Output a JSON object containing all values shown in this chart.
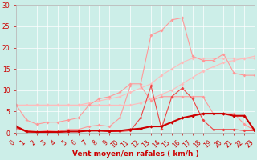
{
  "x": [
    0,
    1,
    2,
    3,
    4,
    5,
    6,
    7,
    8,
    9,
    10,
    11,
    12,
    13,
    14,
    15,
    16,
    17,
    18,
    19,
    20,
    21,
    22,
    23
  ],
  "line_dark_thick": [
    1.5,
    0.3,
    0.2,
    0.2,
    0.2,
    0.3,
    0.3,
    0.5,
    0.5,
    0.4,
    0.5,
    0.8,
    1.0,
    1.5,
    1.5,
    2.5,
    3.5,
    4.0,
    4.5,
    4.5,
    4.5,
    4.0,
    4.0,
    0.5
  ],
  "line_dark_jagged": [
    1.2,
    0.2,
    0.1,
    0.2,
    0.1,
    0.3,
    0.3,
    0.5,
    0.5,
    0.3,
    0.3,
    0.5,
    3.5,
    11.0,
    1.0,
    8.5,
    10.5,
    8.0,
    3.0,
    0.8,
    0.8,
    0.8,
    0.5,
    0.5
  ],
  "line_med_jagged": [
    1.5,
    0.5,
    0.2,
    0.5,
    0.3,
    0.8,
    0.8,
    1.5,
    1.8,
    1.5,
    3.5,
    11.0,
    11.0,
    7.5,
    8.5,
    8.5,
    8.5,
    8.5,
    8.5,
    4.5,
    4.5,
    4.5,
    2.0,
    0.5
  ],
  "line_light_peak": [
    6.5,
    3.0,
    2.0,
    2.5,
    2.5,
    3.0,
    3.5,
    6.5,
    8.0,
    8.5,
    9.5,
    11.5,
    11.5,
    23.0,
    24.0,
    26.5,
    27.0,
    18.0,
    17.0,
    17.0,
    18.5,
    14.0,
    13.5,
    13.5
  ],
  "line_diag1": [
    6.5,
    6.5,
    6.5,
    6.5,
    6.5,
    6.5,
    6.5,
    7.0,
    7.5,
    8.0,
    8.5,
    9.5,
    10.5,
    11.5,
    13.5,
    15.0,
    16.5,
    17.5,
    17.5,
    17.5,
    17.5,
    17.5,
    17.5,
    17.5
  ],
  "line_diag2": [
    6.5,
    6.5,
    6.5,
    6.5,
    6.5,
    6.5,
    6.5,
    6.5,
    6.5,
    6.5,
    6.5,
    6.5,
    7.0,
    8.0,
    9.0,
    10.0,
    11.5,
    13.0,
    14.5,
    15.5,
    16.5,
    17.0,
    17.5,
    18.0
  ],
  "color_dark": "#cc0000",
  "color_medium": "#ee4444",
  "color_light_pink": "#ff9999",
  "color_very_light": "#ffbbbb",
  "bg_color": "#cceee8",
  "grid_color": "#ffffff",
  "xlabel": "Vent moyen/en rafales ( km/h )",
  "xlim": [
    0,
    23
  ],
  "ylim": [
    0,
    30
  ],
  "yticks": [
    0,
    5,
    10,
    15,
    20,
    25,
    30
  ],
  "xticks": [
    0,
    1,
    2,
    3,
    4,
    5,
    6,
    7,
    8,
    9,
    10,
    11,
    12,
    13,
    14,
    15,
    16,
    17,
    18,
    19,
    20,
    21,
    22,
    23
  ],
  "tick_fontsize": 5.5,
  "xlabel_fontsize": 6.5
}
